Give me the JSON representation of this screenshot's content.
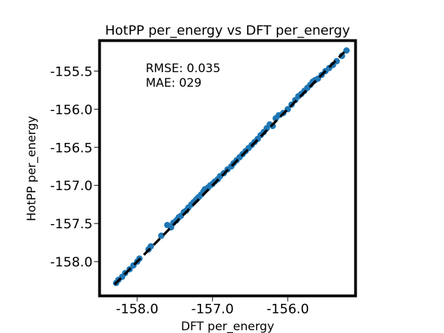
{
  "chart_data": {
    "type": "scatter",
    "title": "HotPP per_energy vs DFT per_energy",
    "xlabel": "DFT  per_energy",
    "ylabel": "HotPP per_energy",
    "xlim": [
      -158.5,
      -155.1
    ],
    "ylim": [
      -158.45,
      -155.1
    ],
    "x_ticks": [
      -158.0,
      -157.0,
      -156.0
    ],
    "x_tick_labels": [
      "-158.0",
      "-157.0",
      "-156.0"
    ],
    "y_ticks": [
      -158.0,
      -157.5,
      -157.0,
      -156.5,
      -156.0,
      -155.5
    ],
    "y_tick_labels": [
      "-158.0",
      "-157.5",
      "-157.0",
      "-156.5",
      "-156.0",
      "-155.5"
    ],
    "grid": false,
    "legend": "none",
    "annotations": [
      "RMSE: 0.035",
      "MAE: 029"
    ],
    "reference_line": {
      "style": "dashed",
      "color": "#000000",
      "from": [
        -158.3,
        -158.3
      ],
      "to": [
        -155.25,
        -155.25
      ]
    },
    "marker_color": "#1f77b4",
    "series": [
      {
        "x": [
          -158.28,
          -158.25,
          -158.2,
          -158.16,
          -158.1,
          -158.05,
          -158.0,
          -157.97,
          -157.85,
          -157.82,
          -157.68,
          -157.6,
          -157.55,
          -157.52,
          -157.48,
          -157.45,
          -157.42,
          -157.38,
          -157.35,
          -157.32,
          -157.28,
          -157.25,
          -157.22,
          -157.2,
          -157.18,
          -157.15,
          -157.12,
          -157.1,
          -157.06,
          -157.03,
          -157.0,
          -156.97,
          -156.93,
          -156.9,
          -156.85,
          -156.8,
          -156.75,
          -156.72,
          -156.68,
          -156.64,
          -156.6,
          -156.56,
          -156.52,
          -156.48,
          -156.44,
          -156.4,
          -156.36,
          -156.32,
          -156.28,
          -156.24,
          -156.2,
          -156.16,
          -156.12,
          -156.06,
          -156.0,
          -155.95,
          -155.9,
          -155.86,
          -155.82,
          -155.78,
          -155.74,
          -155.7,
          -155.67,
          -155.64,
          -155.6,
          -155.55,
          -155.5,
          -155.45,
          -155.4,
          -155.35,
          -155.28,
          -155.22
        ],
        "y": [
          -158.28,
          -158.24,
          -158.2,
          -158.15,
          -158.1,
          -158.05,
          -158.0,
          -157.96,
          -157.84,
          -157.8,
          -157.66,
          -157.52,
          -157.55,
          -157.49,
          -157.46,
          -157.42,
          -157.4,
          -157.35,
          -157.33,
          -157.29,
          -157.25,
          -157.22,
          -157.19,
          -157.17,
          -157.15,
          -157.12,
          -157.08,
          -157.05,
          -157.03,
          -157.0,
          -156.98,
          -156.95,
          -156.92,
          -156.88,
          -156.84,
          -156.79,
          -156.75,
          -156.71,
          -156.67,
          -156.63,
          -156.59,
          -156.55,
          -156.51,
          -156.47,
          -156.43,
          -156.39,
          -156.34,
          -156.3,
          -156.25,
          -156.2,
          -156.22,
          -156.12,
          -156.08,
          -156.05,
          -156.0,
          -155.94,
          -155.88,
          -155.83,
          -155.8,
          -155.76,
          -155.72,
          -155.68,
          -155.64,
          -155.62,
          -155.6,
          -155.55,
          -155.5,
          -155.46,
          -155.42,
          -155.37,
          -155.3,
          -155.23
        ]
      }
    ]
  }
}
